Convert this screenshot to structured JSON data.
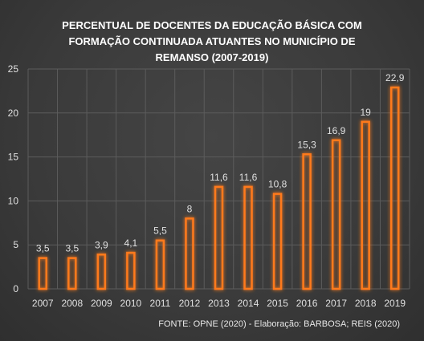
{
  "chart_data": {
    "type": "bar",
    "title_lines": [
      "PERCENTUAL DE DOCENTES DA EDUCAÇÃO BÁSICA COM",
      "FORMAÇÃO CONTINUADA ATUANTES NO MUNICÍPIO DE",
      "REMANSO  (2007-2019)"
    ],
    "categories": [
      "2007",
      "2008",
      "2009",
      "2010",
      "2011",
      "2012",
      "2013",
      "2014",
      "2015",
      "2016",
      "2017",
      "2018",
      "2019"
    ],
    "values": [
      3.5,
      3.5,
      3.9,
      4.1,
      5.5,
      8,
      11.6,
      11.6,
      10.8,
      15.3,
      16.9,
      19,
      22.9
    ],
    "data_labels": [
      "3,5",
      "3,5",
      "3,9",
      "4,1",
      "5,5",
      "8",
      "11,6",
      "11,6",
      "10,8",
      "15,3",
      "16,9",
      "19",
      "22,9"
    ],
    "ylim": [
      0,
      25
    ],
    "yticks": [
      0,
      5,
      10,
      15,
      20,
      25
    ],
    "grid": true,
    "xlabel": "",
    "ylabel": "",
    "bar_color": "#ff7a1a",
    "source": "FONTE: OPNE (2020) - Elaboração: BARBOSA; REIS (2020)"
  }
}
